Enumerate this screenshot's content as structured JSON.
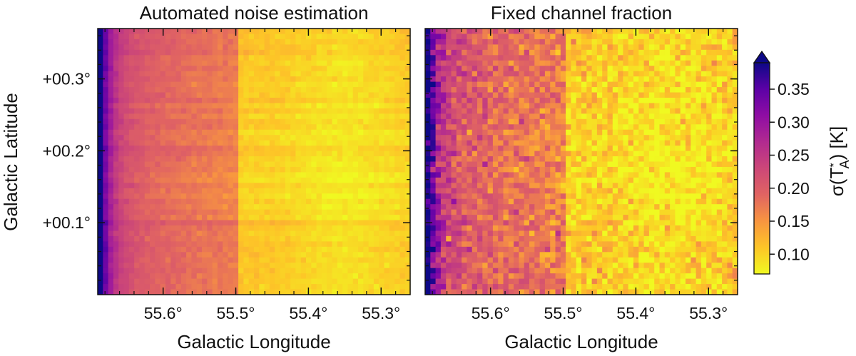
{
  "chart_data": {
    "type": "heatmap",
    "panels": [
      {
        "id": "left",
        "title": "Automated noise estimation",
        "xlabel": "Galactic Longitude",
        "ylabel": "Galactic Latitude",
        "xlim": [
          55.69,
          55.26
        ],
        "ylim": [
          0.0,
          0.37
        ],
        "grid_cols": 60,
        "grid_rows": 50,
        "x_ticks": [
          55.6,
          55.5,
          55.4,
          55.3
        ],
        "x_tick_labels": [
          "55.6°",
          "55.5°",
          "55.4°",
          "55.3°"
        ],
        "y_ticks": [
          0.1,
          0.2,
          0.3
        ],
        "y_tick_labels": [
          "+00.1°",
          "+00.2°",
          "+00.3°"
        ],
        "field_description": "noise highest (~0.35 K) along the left edge near l=55.68°, moderate (~0.17 K) for l>55.5°, lower (~0.11 K) for l<55.5°, lowest (~0.09 K) near l=55.35°, b=0.17°; striping at b≈0.1° and b≈0.2°",
        "noise_level": "low",
        "seed": 7
      },
      {
        "id": "right",
        "title": "Fixed channel fraction",
        "xlabel": "Galactic Longitude",
        "ylabel": "",
        "xlim": [
          55.69,
          55.26
        ],
        "ylim": [
          0.0,
          0.37
        ],
        "grid_cols": 60,
        "grid_rows": 50,
        "x_ticks": [
          55.6,
          55.5,
          55.4,
          55.3
        ],
        "x_tick_labels": [
          "55.6°",
          "55.5°",
          "55.4°",
          "55.3°"
        ],
        "y_ticks": [
          0.1,
          0.2,
          0.3
        ],
        "y_tick_labels": [
          "",
          "",
          ""
        ],
        "field_description": "same large-scale pattern as left panel but with strong pixel-to-pixel noise",
        "noise_level": "high",
        "seed": 31
      }
    ],
    "colorbar": {
      "label": "σ(T",
      "label_sub": "A",
      "label_sup": "*",
      "label_unit": ") [K]",
      "vmin": 0.07,
      "vmax": 0.39,
      "ticks": [
        0.1,
        0.15,
        0.2,
        0.25,
        0.3,
        0.35
      ],
      "tick_labels": [
        "0.10",
        "0.15",
        "0.20",
        "0.25",
        "0.30",
        "0.35"
      ],
      "extend": "max",
      "colormap": "plasma_r"
    },
    "colormap_stops": [
      {
        "v": 0.0,
        "c": "#f0f921"
      },
      {
        "v": 0.125,
        "c": "#fdc527"
      },
      {
        "v": 0.25,
        "c": "#f89540"
      },
      {
        "v": 0.375,
        "c": "#e16462"
      },
      {
        "v": 0.5,
        "c": "#cc4778"
      },
      {
        "v": 0.625,
        "c": "#b12a90"
      },
      {
        "v": 0.75,
        "c": "#8f0da4"
      },
      {
        "v": 0.875,
        "c": "#5c01a6"
      },
      {
        "v": 1.0,
        "c": "#0d0887"
      }
    ]
  }
}
